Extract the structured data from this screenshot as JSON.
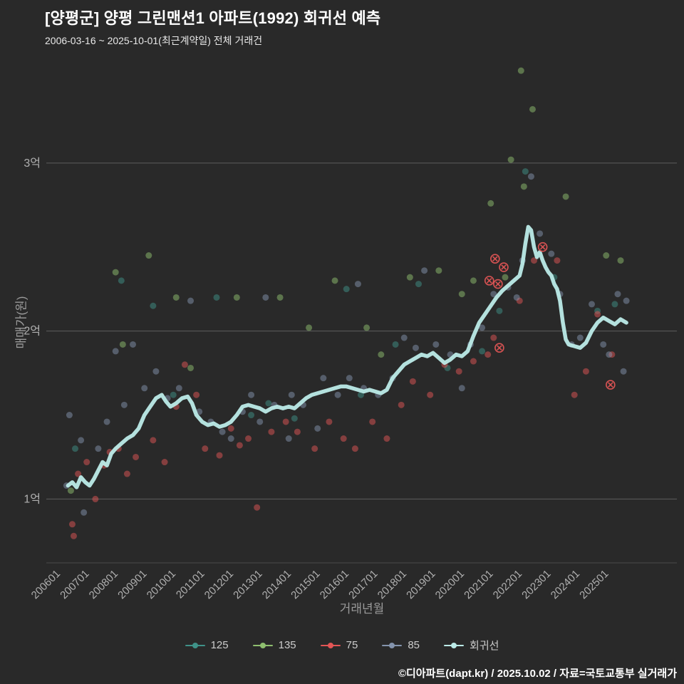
{
  "header": {
    "title": "[양평군] 양평 그린맨션1 아파트(1992) 회귀선 예측",
    "subtitle": "2006-03-16 ~ 2025-10-01(최근계약일) 전체 거래건"
  },
  "footer": {
    "credit": "©디아파트(dapt.kr) / 2025.10.02 / 자료=국토교통부 실거래가"
  },
  "colors": {
    "background": "#292929",
    "grid": "#8a8a8a",
    "tick_text": "#b0b0b0",
    "axis_title": "#9a9a9a",
    "series_125": "#3f9288",
    "series_135": "#8fbf6f",
    "series_75": "#e25555",
    "series_85": "#8494ad",
    "regression": "#bcebe8"
  },
  "chart_data": {
    "type": "scatter",
    "title": "[양평군] 양평 그린맨션1 아파트(1992) 회귀선 예측",
    "xlabel": "거래년월",
    "ylabel": "매매가(원)",
    "x_ticks": [
      {
        "label": "200601",
        "value": 2006
      },
      {
        "label": "200701",
        "value": 2007
      },
      {
        "label": "200801",
        "value": 2008
      },
      {
        "label": "200901",
        "value": 2009
      },
      {
        "label": "201001",
        "value": 2010
      },
      {
        "label": "201101",
        "value": 2011
      },
      {
        "label": "201201",
        "value": 2012
      },
      {
        "label": "201301",
        "value": 2013
      },
      {
        "label": "201401",
        "value": 2014
      },
      {
        "label": "201501",
        "value": 2015
      },
      {
        "label": "201601",
        "value": 2016
      },
      {
        "label": "201701",
        "value": 2017
      },
      {
        "label": "201801",
        "value": 2018
      },
      {
        "label": "201901",
        "value": 2019
      },
      {
        "label": "202001",
        "value": 2020
      },
      {
        "label": "202101",
        "value": 2021
      },
      {
        "label": "202201",
        "value": 2022
      },
      {
        "label": "202301",
        "value": 2023
      },
      {
        "label": "202401",
        "value": 2024
      },
      {
        "label": "202501",
        "value": 2025
      }
    ],
    "y_ticks": [
      {
        "label": "1억",
        "value": 1
      },
      {
        "label": "2억",
        "value": 2
      },
      {
        "label": "3억",
        "value": 3
      }
    ],
    "xlim": [
      2005.5,
      2027.35
    ],
    "ylim": [
      0.62,
      3.61
    ],
    "grid": true,
    "legend_position": "bottom",
    "unit_note": "y values in 억원 (hundred-million KRW)",
    "series": [
      {
        "name": "125",
        "color": "#3f9288",
        "kind": "scatter",
        "points": [
          [
            2006.5,
            1.3
          ],
          [
            2008.1,
            2.3
          ],
          [
            2009.2,
            2.15
          ],
          [
            2009.9,
            1.62
          ],
          [
            2011.4,
            2.2
          ],
          [
            2012.6,
            1.5
          ],
          [
            2013.2,
            1.57
          ],
          [
            2014.1,
            1.48
          ],
          [
            2015.9,
            2.25
          ],
          [
            2016.4,
            1.62
          ],
          [
            2017.6,
            1.92
          ],
          [
            2018.4,
            2.28
          ],
          [
            2019.4,
            1.78
          ],
          [
            2020.6,
            1.88
          ],
          [
            2021.2,
            2.12
          ],
          [
            2022.1,
            2.95
          ],
          [
            2023.1,
            2.32
          ],
          [
            2024.6,
            2.12
          ],
          [
            2025.2,
            2.16
          ]
        ]
      },
      {
        "name": "135",
        "color": "#8fbf6f",
        "kind": "scatter",
        "points": [
          [
            2006.35,
            1.05
          ],
          [
            2007.9,
            2.35
          ],
          [
            2008.15,
            1.92
          ],
          [
            2009.05,
            2.45
          ],
          [
            2010.0,
            2.2
          ],
          [
            2010.5,
            1.78
          ],
          [
            2012.1,
            2.2
          ],
          [
            2013.6,
            2.2
          ],
          [
            2014.6,
            2.02
          ],
          [
            2015.5,
            2.3
          ],
          [
            2016.6,
            2.02
          ],
          [
            2017.1,
            1.86
          ],
          [
            2018.1,
            2.32
          ],
          [
            2019.1,
            2.36
          ],
          [
            2019.9,
            2.22
          ],
          [
            2020.3,
            2.3
          ],
          [
            2020.9,
            2.76
          ],
          [
            2021.4,
            2.32
          ],
          [
            2021.6,
            3.02
          ],
          [
            2021.95,
            3.55
          ],
          [
            2022.35,
            3.32
          ],
          [
            2022.05,
            2.86
          ],
          [
            2023.5,
            2.8
          ],
          [
            2024.9,
            2.45
          ],
          [
            2025.4,
            2.42
          ]
        ]
      },
      {
        "name": "75",
        "color": "#e25555",
        "kind": "scatter",
        "points": [
          [
            2006.4,
            0.85
          ],
          [
            2006.45,
            0.78
          ],
          [
            2006.6,
            1.15
          ],
          [
            2006.9,
            1.22
          ],
          [
            2007.2,
            1.0
          ],
          [
            2007.5,
            1.2
          ],
          [
            2007.7,
            1.28
          ],
          [
            2008.0,
            1.3
          ],
          [
            2008.3,
            1.15
          ],
          [
            2008.6,
            1.25
          ],
          [
            2009.2,
            1.35
          ],
          [
            2009.6,
            1.22
          ],
          [
            2010.0,
            1.55
          ],
          [
            2010.3,
            1.8
          ],
          [
            2010.7,
            1.62
          ],
          [
            2011.0,
            1.3
          ],
          [
            2011.5,
            1.26
          ],
          [
            2011.9,
            1.42
          ],
          [
            2012.2,
            1.32
          ],
          [
            2012.5,
            1.36
          ],
          [
            2012.8,
            0.95
          ],
          [
            2013.3,
            1.4
          ],
          [
            2013.8,
            1.46
          ],
          [
            2014.2,
            1.4
          ],
          [
            2014.8,
            1.3
          ],
          [
            2015.3,
            1.46
          ],
          [
            2015.8,
            1.36
          ],
          [
            2016.2,
            1.3
          ],
          [
            2016.8,
            1.46
          ],
          [
            2017.3,
            1.36
          ],
          [
            2017.8,
            1.56
          ],
          [
            2018.2,
            1.7
          ],
          [
            2018.8,
            1.62
          ],
          [
            2019.3,
            1.8
          ],
          [
            2019.8,
            1.76
          ],
          [
            2020.3,
            1.82
          ],
          [
            2020.8,
            1.86
          ],
          [
            2021.0,
            1.96
          ],
          [
            2021.9,
            2.18
          ],
          [
            2022.4,
            2.42
          ],
          [
            2023.2,
            2.42
          ],
          [
            2023.8,
            1.62
          ],
          [
            2024.2,
            1.76
          ],
          [
            2024.6,
            2.1
          ],
          [
            2025.1,
            1.86
          ]
        ],
        "marked_points": [
          [
            2020.85,
            2.3
          ],
          [
            2021.05,
            2.43
          ],
          [
            2021.15,
            2.28
          ],
          [
            2021.35,
            2.38
          ],
          [
            2021.2,
            1.9
          ],
          [
            2022.7,
            2.5
          ],
          [
            2025.05,
            1.68
          ]
        ]
      },
      {
        "name": "85",
        "color": "#8494ad",
        "kind": "scatter",
        "points": [
          [
            2006.2,
            1.08
          ],
          [
            2006.3,
            1.5
          ],
          [
            2006.7,
            1.35
          ],
          [
            2006.8,
            0.92
          ],
          [
            2007.3,
            1.3
          ],
          [
            2007.6,
            1.46
          ],
          [
            2007.9,
            1.88
          ],
          [
            2008.2,
            1.56
          ],
          [
            2008.5,
            1.92
          ],
          [
            2008.9,
            1.66
          ],
          [
            2009.3,
            1.76
          ],
          [
            2009.7,
            1.6
          ],
          [
            2010.1,
            1.66
          ],
          [
            2010.5,
            2.18
          ],
          [
            2010.8,
            1.52
          ],
          [
            2011.2,
            1.46
          ],
          [
            2011.6,
            1.4
          ],
          [
            2011.9,
            1.36
          ],
          [
            2012.3,
            1.52
          ],
          [
            2012.6,
            1.62
          ],
          [
            2012.9,
            1.46
          ],
          [
            2013.1,
            2.2
          ],
          [
            2013.4,
            1.56
          ],
          [
            2013.9,
            1.36
          ],
          [
            2014.0,
            1.62
          ],
          [
            2014.4,
            1.56
          ],
          [
            2014.9,
            1.42
          ],
          [
            2015.1,
            1.72
          ],
          [
            2015.6,
            1.62
          ],
          [
            2016.0,
            1.72
          ],
          [
            2016.3,
            2.28
          ],
          [
            2016.5,
            1.66
          ],
          [
            2017.0,
            1.62
          ],
          [
            2017.5,
            1.72
          ],
          [
            2017.9,
            1.96
          ],
          [
            2018.3,
            1.9
          ],
          [
            2018.6,
            2.36
          ],
          [
            2019.0,
            1.92
          ],
          [
            2019.5,
            1.86
          ],
          [
            2019.9,
            1.66
          ],
          [
            2020.2,
            1.92
          ],
          [
            2020.6,
            2.02
          ],
          [
            2021.0,
            2.22
          ],
          [
            2021.5,
            2.26
          ],
          [
            2021.8,
            2.2
          ],
          [
            2022.0,
            2.42
          ],
          [
            2022.3,
            2.92
          ],
          [
            2022.6,
            2.58
          ],
          [
            2023.0,
            2.46
          ],
          [
            2023.3,
            2.22
          ],
          [
            2023.7,
            1.92
          ],
          [
            2024.0,
            1.96
          ],
          [
            2024.4,
            2.16
          ],
          [
            2024.8,
            1.92
          ],
          [
            2025.0,
            1.86
          ],
          [
            2025.3,
            2.22
          ],
          [
            2025.5,
            1.76
          ],
          [
            2025.6,
            2.18
          ]
        ]
      },
      {
        "name": "회귀선",
        "color": "#bcebe8",
        "kind": "line",
        "points": [
          [
            2006.25,
            1.08
          ],
          [
            2006.4,
            1.1
          ],
          [
            2006.55,
            1.07
          ],
          [
            2006.7,
            1.13
          ],
          [
            2006.85,
            1.1
          ],
          [
            2007.0,
            1.08
          ],
          [
            2007.15,
            1.12
          ],
          [
            2007.3,
            1.17
          ],
          [
            2007.45,
            1.22
          ],
          [
            2007.6,
            1.2
          ],
          [
            2007.75,
            1.27
          ],
          [
            2007.9,
            1.3
          ],
          [
            2008.1,
            1.33
          ],
          [
            2008.3,
            1.36
          ],
          [
            2008.5,
            1.38
          ],
          [
            2008.7,
            1.42
          ],
          [
            2008.9,
            1.5
          ],
          [
            2009.1,
            1.55
          ],
          [
            2009.3,
            1.6
          ],
          [
            2009.5,
            1.62
          ],
          [
            2009.65,
            1.58
          ],
          [
            2009.8,
            1.55
          ],
          [
            2010.0,
            1.57
          ],
          [
            2010.2,
            1.6
          ],
          [
            2010.4,
            1.61
          ],
          [
            2010.55,
            1.57
          ],
          [
            2010.7,
            1.5
          ],
          [
            2010.9,
            1.46
          ],
          [
            2011.1,
            1.44
          ],
          [
            2011.3,
            1.45
          ],
          [
            2011.5,
            1.43
          ],
          [
            2011.7,
            1.44
          ],
          [
            2011.9,
            1.46
          ],
          [
            2012.1,
            1.5
          ],
          [
            2012.3,
            1.55
          ],
          [
            2012.5,
            1.56
          ],
          [
            2012.7,
            1.55
          ],
          [
            2012.9,
            1.54
          ],
          [
            2013.1,
            1.52
          ],
          [
            2013.3,
            1.54
          ],
          [
            2013.5,
            1.55
          ],
          [
            2013.7,
            1.54
          ],
          [
            2013.9,
            1.55
          ],
          [
            2014.1,
            1.54
          ],
          [
            2014.3,
            1.57
          ],
          [
            2014.5,
            1.6
          ],
          [
            2014.7,
            1.62
          ],
          [
            2014.9,
            1.63
          ],
          [
            2015.1,
            1.64
          ],
          [
            2015.3,
            1.65
          ],
          [
            2015.5,
            1.66
          ],
          [
            2015.7,
            1.67
          ],
          [
            2015.9,
            1.67
          ],
          [
            2016.1,
            1.66
          ],
          [
            2016.3,
            1.65
          ],
          [
            2016.5,
            1.64
          ],
          [
            2016.7,
            1.65
          ],
          [
            2016.9,
            1.64
          ],
          [
            2017.1,
            1.63
          ],
          [
            2017.3,
            1.65
          ],
          [
            2017.5,
            1.72
          ],
          [
            2017.7,
            1.76
          ],
          [
            2017.9,
            1.8
          ],
          [
            2018.1,
            1.82
          ],
          [
            2018.3,
            1.84
          ],
          [
            2018.5,
            1.86
          ],
          [
            2018.7,
            1.85
          ],
          [
            2018.9,
            1.87
          ],
          [
            2019.1,
            1.84
          ],
          [
            2019.3,
            1.81
          ],
          [
            2019.5,
            1.83
          ],
          [
            2019.7,
            1.86
          ],
          [
            2019.9,
            1.85
          ],
          [
            2020.1,
            1.88
          ],
          [
            2020.3,
            1.97
          ],
          [
            2020.5,
            2.05
          ],
          [
            2020.7,
            2.1
          ],
          [
            2020.9,
            2.15
          ],
          [
            2021.1,
            2.2
          ],
          [
            2021.3,
            2.24
          ],
          [
            2021.5,
            2.27
          ],
          [
            2021.7,
            2.3
          ],
          [
            2021.9,
            2.33
          ],
          [
            2022.0,
            2.4
          ],
          [
            2022.1,
            2.52
          ],
          [
            2022.2,
            2.62
          ],
          [
            2022.3,
            2.6
          ],
          [
            2022.4,
            2.5
          ],
          [
            2022.5,
            2.44
          ],
          [
            2022.6,
            2.47
          ],
          [
            2022.7,
            2.42
          ],
          [
            2022.8,
            2.38
          ],
          [
            2022.9,
            2.35
          ],
          [
            2023.0,
            2.33
          ],
          [
            2023.1,
            2.28
          ],
          [
            2023.2,
            2.25
          ],
          [
            2023.3,
            2.18
          ],
          [
            2023.4,
            2.05
          ],
          [
            2023.5,
            1.95
          ],
          [
            2023.6,
            1.92
          ],
          [
            2023.8,
            1.91
          ],
          [
            2024.0,
            1.9
          ],
          [
            2024.2,
            1.93
          ],
          [
            2024.4,
            2.0
          ],
          [
            2024.6,
            2.05
          ],
          [
            2024.8,
            2.08
          ],
          [
            2025.0,
            2.06
          ],
          [
            2025.2,
            2.04
          ],
          [
            2025.4,
            2.07
          ],
          [
            2025.6,
            2.05
          ]
        ]
      }
    ]
  }
}
